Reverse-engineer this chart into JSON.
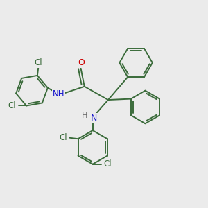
{
  "bg_color": "#ebebeb",
  "bond_color": "#3a6b3a",
  "atom_colors": {
    "N": "#1414cc",
    "O": "#cc0000",
    "Cl": "#3a6b3a",
    "H": "#666666",
    "C": "#3a6b3a"
  },
  "line_width": 1.4,
  "font_size": 8.5
}
